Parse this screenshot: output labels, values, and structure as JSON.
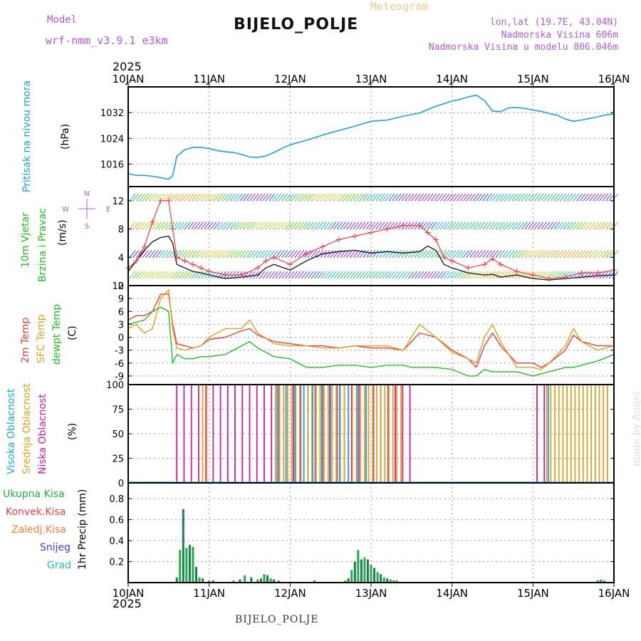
{
  "header": {
    "model_label": "Model",
    "model_name": "wrf-nmm_v3.9.1  e3km",
    "meteogram": "Meteogram",
    "station": "BIJELO_POLJE",
    "lonlat": "lon,lat (19.7E, 43.04N)",
    "altitude": "Nadmorska Visina 606m",
    "model_altitude": "Nadmorska Visina u modelu 806.046m",
    "year_top": "2025",
    "year_bottom": "2025"
  },
  "footer": {
    "station": "BIJELO_POLJE",
    "credit": "made by Angel"
  },
  "colors": {
    "pressure": "#1aa0e8",
    "temp2m": "#f03c3c",
    "sfc": "#e0a020",
    "dewpt": "#20c020",
    "high": "#19a8e8",
    "mid": "#e0a020",
    "low": "#d21ba0",
    "rain": "#20b040",
    "conv": "#f04040",
    "frz": "#f08030",
    "snow": "#4040e0",
    "grad": "#20c0c0",
    "wind": "#111111",
    "gust": "#f04040"
  },
  "x_ticks": [
    "10JAN",
    "11JAN",
    "12JAN",
    "13JAN",
    "14JAN",
    "15JAN",
    "16JAN"
  ],
  "panel_labels": {
    "pressure": [
      "Pritisak na nivou mora",
      "(hPa)"
    ],
    "wind": [
      "10m Vjetar",
      "Brzina i Pravac",
      "(m/s)"
    ],
    "compass": {
      "n": "N",
      "e": "E",
      "s": "S",
      "w": "W"
    },
    "temp": [
      "2m Temp",
      "SFC Temp",
      "dewpt Temp",
      "(C)"
    ],
    "cloud": [
      "Visoka Oblacnost",
      "Srednja Oblacnost",
      "Niska Oblacnost",
      "(%)"
    ],
    "precip_legend": [
      "Ukupna Kisa",
      "Konvek.Kisa",
      "Zaledj.Kisa",
      "Snijeg",
      "Grad"
    ],
    "precip_unit": "1hr Precip (mm)"
  },
  "chart_data": [
    {
      "type": "line",
      "title": "Pritisak na nivou mora",
      "ylabel": "(hPa)",
      "ylim": [
        1009,
        1040
      ],
      "yticks": [
        1016,
        1024,
        1032
      ],
      "x_days": [
        0,
        0.1,
        0.2,
        0.3,
        0.4,
        0.5,
        0.55,
        0.6,
        0.7,
        0.8,
        0.9,
        1.0,
        1.1,
        1.2,
        1.3,
        1.4,
        1.5,
        1.6,
        1.7,
        1.8,
        1.9,
        2.0,
        2.2,
        2.4,
        2.6,
        2.8,
        3.0,
        3.2,
        3.4,
        3.6,
        3.8,
        4.0,
        4.1,
        4.2,
        4.3,
        4.4,
        4.5,
        4.6,
        4.7,
        4.8,
        4.9,
        5.0,
        5.1,
        5.2,
        5.3,
        5.4,
        5.5,
        5.6,
        5.7,
        5.8,
        5.9,
        6.0
      ],
      "values": [
        1013,
        1012.5,
        1012.5,
        1012.2,
        1011.8,
        1011.3,
        1012.4,
        1018.4,
        1020.5,
        1021.2,
        1021.2,
        1020.8,
        1020.2,
        1019.8,
        1019.6,
        1019.0,
        1018.2,
        1018.1,
        1018.5,
        1019.6,
        1020.9,
        1022.0,
        1023.4,
        1025.0,
        1026.4,
        1027.8,
        1029.3,
        1029.7,
        1030.9,
        1031.9,
        1034.0,
        1035.6,
        1036.1,
        1036.9,
        1037.4,
        1035.8,
        1032.5,
        1032.3,
        1033.5,
        1033.6,
        1033.3,
        1032.8,
        1032.4,
        1031.7,
        1031.2,
        1030.0,
        1029.3,
        1029.7,
        1030.2,
        1030.7,
        1031.3,
        1031.6
      ]
    },
    {
      "type": "line",
      "title": "10m Vjetar Brzina i Pravac",
      "ylabel": "(m/s)",
      "ylim": [
        0,
        14
      ],
      "yticks": [
        0,
        4,
        8,
        12
      ],
      "series": [
        {
          "name": "speed",
          "x_days": [
            0,
            0.1,
            0.2,
            0.3,
            0.4,
            0.5,
            0.55,
            0.6,
            0.7,
            0.8,
            0.9,
            1.0,
            1.2,
            1.4,
            1.6,
            1.7,
            1.8,
            2.0,
            2.2,
            2.4,
            2.6,
            2.8,
            3.0,
            3.2,
            3.4,
            3.6,
            3.7,
            3.8,
            3.9,
            4.0,
            4.2,
            4.4,
            4.5,
            4.6,
            4.8,
            5.0,
            5.2,
            5.4,
            5.6,
            5.8,
            6.0
          ],
          "values": [
            2,
            3.5,
            5,
            6.2,
            6.8,
            7,
            6,
            3,
            2.5,
            2,
            1.8,
            1.5,
            1,
            1.2,
            1.5,
            2.5,
            3,
            2.2,
            3.5,
            4.5,
            4.8,
            5,
            4.6,
            4.8,
            4.6,
            4.8,
            5.6,
            5,
            3,
            2.5,
            1.8,
            1.5,
            1.6,
            1.2,
            1.5,
            1.0,
            0.8,
            1.0,
            1.2,
            1.4,
            1.5
          ]
        },
        {
          "name": "gust",
          "x_days": [
            0,
            0.1,
            0.2,
            0.3,
            0.4,
            0.5,
            0.55,
            0.6,
            0.7,
            0.8,
            0.9,
            1.0,
            1.2,
            1.4,
            1.6,
            1.7,
            1.8,
            2.0,
            2.2,
            2.4,
            2.6,
            2.8,
            3.0,
            3.2,
            3.4,
            3.6,
            3.7,
            3.8,
            3.9,
            4.0,
            4.2,
            4.4,
            4.5,
            4.6,
            4.8,
            5.0,
            5.2,
            5.4,
            5.6,
            5.8,
            6.0
          ],
          "values": [
            2.5,
            3.5,
            5.5,
            9,
            12,
            12,
            8,
            4,
            3.5,
            3,
            2.5,
            2,
            1.5,
            1.5,
            2.5,
            3.5,
            4,
            3,
            4.5,
            5.5,
            6.5,
            7,
            7.5,
            8,
            8.5,
            8.5,
            7.5,
            6.5,
            4,
            3.5,
            2.5,
            3,
            3.8,
            3,
            2,
            1.5,
            1.0,
            1.2,
            1.8,
            1.8,
            2.2
          ]
        }
      ],
      "barb_rows_ms": [
        12,
        8,
        4,
        1
      ]
    },
    {
      "type": "line",
      "title": "Temperatura",
      "ylabel": "(C)",
      "ylim": [
        -11,
        12
      ],
      "yticks": [
        -9,
        -6,
        -3,
        0,
        3,
        6,
        9,
        12
      ],
      "series": [
        {
          "name": "2m Temp",
          "x_days": [
            0,
            0.1,
            0.2,
            0.3,
            0.4,
            0.5,
            0.55,
            0.6,
            0.7,
            0.8,
            0.9,
            1.0,
            1.2,
            1.4,
            1.5,
            1.6,
            1.8,
            2.0,
            2.2,
            2.4,
            2.6,
            2.8,
            3.0,
            3.2,
            3.4,
            3.5,
            3.6,
            3.8,
            4.0,
            4.2,
            4.3,
            4.4,
            4.5,
            4.6,
            4.8,
            5.0,
            5.1,
            5.2,
            5.4,
            5.5,
            5.6,
            5.8,
            6.0
          ],
          "values": [
            4,
            5,
            5,
            6,
            10,
            10,
            3,
            -1.5,
            -2,
            -2.5,
            -2,
            -0.5,
            0,
            1.5,
            2,
            0.5,
            -1,
            -1.5,
            -2,
            -2,
            -2.5,
            -2,
            -2.5,
            -2.5,
            -3,
            -1,
            1,
            0,
            -3,
            -5,
            -7,
            -2,
            1,
            -2,
            -6,
            -6,
            -7,
            -6,
            -3,
            0.5,
            -1,
            -2,
            -2
          ]
        },
        {
          "name": "SFC Temp",
          "x_days": [
            0,
            0.1,
            0.2,
            0.3,
            0.4,
            0.5,
            0.55,
            0.6,
            0.7,
            0.8,
            0.9,
            1.0,
            1.2,
            1.4,
            1.5,
            1.6,
            1.8,
            2.0,
            2.2,
            2.4,
            2.6,
            2.8,
            3.0,
            3.2,
            3.4,
            3.5,
            3.6,
            3.8,
            4.0,
            4.2,
            4.3,
            4.4,
            4.5,
            4.6,
            4.8,
            5.0,
            5.1,
            5.2,
            5.4,
            5.5,
            5.6,
            5.8,
            6.0
          ],
          "values": [
            2,
            3,
            1,
            2,
            9,
            11,
            2,
            -2.5,
            -3,
            -2.5,
            -2,
            0,
            2,
            2,
            4,
            1,
            -1.5,
            -2,
            -2,
            -2.5,
            -2.5,
            -2,
            -2,
            -2,
            -3,
            0,
            3,
            0,
            -3.5,
            -5,
            -6,
            0,
            3,
            -1,
            -7,
            -7,
            -7.5,
            -6,
            -2,
            2,
            -1,
            -3,
            -2
          ]
        },
        {
          "name": "dewpt Temp",
          "x_days": [
            0,
            0.1,
            0.2,
            0.3,
            0.4,
            0.5,
            0.55,
            0.6,
            0.7,
            0.8,
            0.9,
            1.0,
            1.2,
            1.4,
            1.5,
            1.6,
            1.8,
            2.0,
            2.2,
            2.4,
            2.6,
            2.8,
            3.0,
            3.2,
            3.4,
            3.5,
            3.6,
            3.8,
            4.0,
            4.2,
            4.3,
            4.4,
            4.5,
            4.6,
            4.8,
            5.0,
            5.1,
            5.2,
            5.4,
            5.5,
            5.6,
            5.8,
            6.0
          ],
          "values": [
            3,
            3.5,
            4,
            6,
            7,
            6,
            -6,
            -4,
            -5,
            -5,
            -4.5,
            -4.5,
            -4,
            -2,
            -1,
            -2.5,
            -4.5,
            -5,
            -7,
            -7,
            -6.5,
            -6.5,
            -7,
            -6.5,
            -6.5,
            -7,
            -7,
            -7,
            -7.5,
            -9,
            -9,
            -7.5,
            -8,
            -8,
            -8,
            -9,
            -8.5,
            -8,
            -7,
            -7,
            -6.5,
            -5.5,
            -4
          ]
        }
      ]
    },
    {
      "type": "bar",
      "title": "Oblacnost",
      "ylabel": "(%)",
      "ylim": [
        0,
        100
      ],
      "yticks": [
        0,
        25,
        50,
        75,
        100
      ],
      "low_cloud_spans_days": [
        [
          0.6,
          3.3
        ],
        [
          3.3,
          3.55
        ],
        [
          5.05,
          5.2
        ]
      ],
      "mid_cloud_spans_days": [
        [
          0.9,
          1.0
        ],
        [
          1.8,
          3.4
        ],
        [
          5.15,
          5.95
        ]
      ],
      "high_cloud_spans_days": [
        [
          1.8,
          3.0
        ],
        [
          5.15,
          5.2
        ]
      ]
    },
    {
      "type": "bar",
      "title": "1hr Precip",
      "ylabel": "1hr Precip (mm)",
      "ylim": [
        0,
        0.95
      ],
      "yticks": [
        0.2,
        0.4,
        0.6,
        0.8
      ],
      "x_days": [
        0.6,
        0.64,
        0.68,
        0.72,
        0.76,
        0.8,
        0.84,
        0.88,
        0.92,
        1.0,
        1.05,
        1.3,
        1.38,
        1.44,
        1.52,
        1.6,
        1.64,
        1.68,
        1.72,
        1.76,
        1.8,
        1.86,
        2.3,
        2.68,
        2.72,
        2.76,
        2.8,
        2.84,
        2.88,
        2.92,
        2.96,
        3.0,
        3.04,
        3.08,
        3.12,
        3.16,
        3.2,
        3.24,
        3.28,
        3.32,
        5.8,
        5.84,
        5.88
      ],
      "values": [
        0.05,
        0.31,
        0.7,
        0.33,
        0.36,
        0.34,
        0.15,
        0.05,
        0.04,
        0.02,
        0.02,
        0.02,
        0.03,
        0.07,
        0.05,
        0.03,
        0.04,
        0.08,
        0.07,
        0.04,
        0.03,
        0.02,
        0.02,
        0.02,
        0.04,
        0.12,
        0.2,
        0.31,
        0.22,
        0.24,
        0.22,
        0.17,
        0.14,
        0.1,
        0.08,
        0.05,
        0.04,
        0.03,
        0.02,
        0.02,
        0.02,
        0.03,
        0.02
      ]
    }
  ]
}
